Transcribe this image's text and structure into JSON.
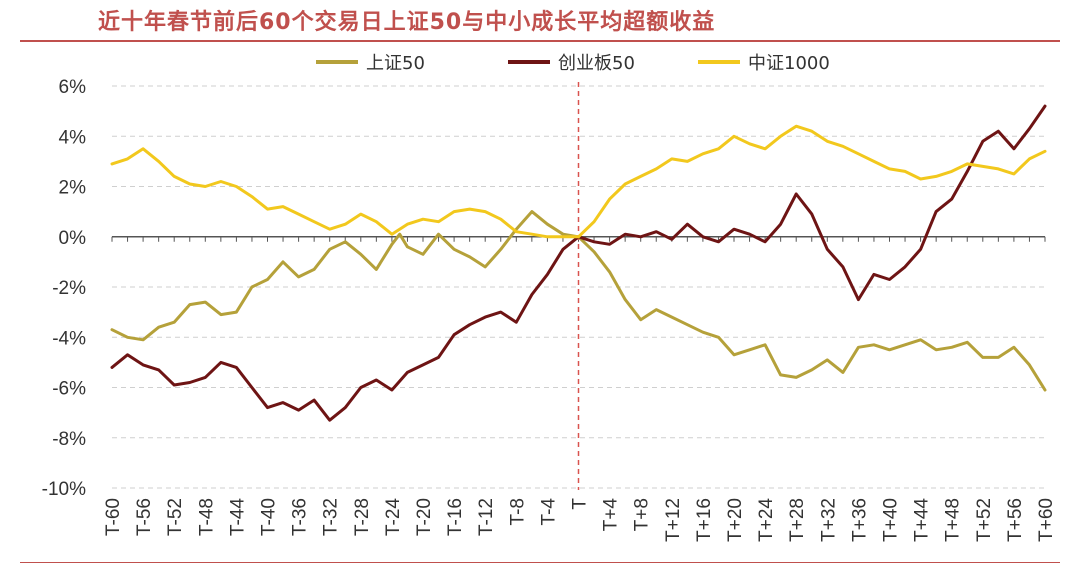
{
  "chart_data": {
    "type": "line",
    "title": "近十年春节前后60个交易日上证50与中小成长平均超额收益",
    "xlabel": "",
    "ylabel": "",
    "xlim": [
      -60,
      60
    ],
    "ylim": [
      -10,
      6
    ],
    "y_ticks": [
      "6%",
      "4%",
      "2%",
      "0%",
      "-2%",
      "-4%",
      "-6%",
      "-8%",
      "-10%"
    ],
    "x_ticks": [
      "T-60",
      "T-56",
      "T-52",
      "T-48",
      "T-44",
      "T-40",
      "T-36",
      "T-32",
      "T-28",
      "T-24",
      "T-20",
      "T-16",
      "T-12",
      "T-8",
      "T-4",
      "T",
      "T+4",
      "T+8",
      "T+12",
      "T+16",
      "T+20",
      "T+24",
      "T+28",
      "T+32",
      "T+36",
      "T+40",
      "T+44",
      "T+48",
      "T+52",
      "T+56",
      "T+60"
    ],
    "grid": "horizontal-dashed",
    "legend_position": "top",
    "reference_line": {
      "x": 0
    },
    "series": [
      {
        "name": "上证50",
        "color": "#b5a13a",
        "points": [
          [
            -60,
            -3.7
          ],
          [
            -58,
            -4.0
          ],
          [
            -56,
            -4.1
          ],
          [
            -54,
            -3.6
          ],
          [
            -52,
            -3.4
          ],
          [
            -50,
            -2.7
          ],
          [
            -48,
            -2.6
          ],
          [
            -46,
            -3.1
          ],
          [
            -44,
            -3.0
          ],
          [
            -42,
            -2.0
          ],
          [
            -40,
            -1.7
          ],
          [
            -38,
            -1.0
          ],
          [
            -36,
            -1.6
          ],
          [
            -34,
            -1.3
          ],
          [
            -32,
            -0.5
          ],
          [
            -30,
            -0.2
          ],
          [
            -28,
            -0.7
          ],
          [
            -26,
            -1.3
          ],
          [
            -24,
            -0.3
          ],
          [
            -23,
            0.1
          ],
          [
            -22,
            -0.4
          ],
          [
            -20,
            -0.7
          ],
          [
            -18,
            0.1
          ],
          [
            -16,
            -0.5
          ],
          [
            -14,
            -0.8
          ],
          [
            -12,
            -1.2
          ],
          [
            -10,
            -0.5
          ],
          [
            -8,
            0.3
          ],
          [
            -6,
            1.0
          ],
          [
            -4,
            0.5
          ],
          [
            -2,
            0.1
          ],
          [
            0,
            0.0
          ],
          [
            2,
            -0.6
          ],
          [
            4,
            -1.4
          ],
          [
            6,
            -2.5
          ],
          [
            8,
            -3.3
          ],
          [
            10,
            -2.9
          ],
          [
            12,
            -3.2
          ],
          [
            14,
            -3.5
          ],
          [
            16,
            -3.8
          ],
          [
            18,
            -4.0
          ],
          [
            20,
            -4.7
          ],
          [
            22,
            -4.5
          ],
          [
            24,
            -4.3
          ],
          [
            26,
            -5.5
          ],
          [
            28,
            -5.6
          ],
          [
            30,
            -5.3
          ],
          [
            32,
            -4.9
          ],
          [
            34,
            -5.4
          ],
          [
            36,
            -4.4
          ],
          [
            38,
            -4.3
          ],
          [
            40,
            -4.5
          ],
          [
            42,
            -4.3
          ],
          [
            44,
            -4.1
          ],
          [
            46,
            -4.5
          ],
          [
            48,
            -4.4
          ],
          [
            50,
            -4.2
          ],
          [
            52,
            -4.8
          ],
          [
            54,
            -4.8
          ],
          [
            56,
            -4.4
          ],
          [
            58,
            -5.1
          ],
          [
            60,
            -6.1
          ]
        ]
      },
      {
        "name": "创业板50",
        "color": "#6e1414",
        "points": [
          [
            -60,
            -5.2
          ],
          [
            -58,
            -4.7
          ],
          [
            -56,
            -5.1
          ],
          [
            -54,
            -5.3
          ],
          [
            -52,
            -5.9
          ],
          [
            -50,
            -5.8
          ],
          [
            -48,
            -5.6
          ],
          [
            -46,
            -5.0
          ],
          [
            -44,
            -5.2
          ],
          [
            -42,
            -6.0
          ],
          [
            -40,
            -6.8
          ],
          [
            -38,
            -6.6
          ],
          [
            -36,
            -6.9
          ],
          [
            -34,
            -6.5
          ],
          [
            -32,
            -7.3
          ],
          [
            -30,
            -6.8
          ],
          [
            -28,
            -6.0
          ],
          [
            -26,
            -5.7
          ],
          [
            -24,
            -6.1
          ],
          [
            -22,
            -5.4
          ],
          [
            -20,
            -5.1
          ],
          [
            -18,
            -4.8
          ],
          [
            -16,
            -3.9
          ],
          [
            -14,
            -3.5
          ],
          [
            -12,
            -3.2
          ],
          [
            -10,
            -3.0
          ],
          [
            -8,
            -3.4
          ],
          [
            -6,
            -2.3
          ],
          [
            -4,
            -1.5
          ],
          [
            -2,
            -0.5
          ],
          [
            0,
            0.0
          ],
          [
            2,
            -0.2
          ],
          [
            4,
            -0.3
          ],
          [
            6,
            0.1
          ],
          [
            8,
            0.0
          ],
          [
            10,
            0.2
          ],
          [
            12,
            -0.1
          ],
          [
            14,
            0.5
          ],
          [
            16,
            0.0
          ],
          [
            18,
            -0.2
          ],
          [
            20,
            0.3
          ],
          [
            22,
            0.1
          ],
          [
            24,
            -0.2
          ],
          [
            26,
            0.5
          ],
          [
            28,
            1.7
          ],
          [
            30,
            0.9
          ],
          [
            32,
            -0.5
          ],
          [
            34,
            -1.2
          ],
          [
            36,
            -2.5
          ],
          [
            38,
            -1.5
          ],
          [
            40,
            -1.7
          ],
          [
            42,
            -1.2
          ],
          [
            44,
            -0.5
          ],
          [
            46,
            1.0
          ],
          [
            48,
            1.5
          ],
          [
            50,
            2.6
          ],
          [
            52,
            3.8
          ],
          [
            54,
            4.2
          ],
          [
            56,
            3.5
          ],
          [
            58,
            4.3
          ],
          [
            60,
            5.2
          ]
        ]
      },
      {
        "name": "中证1000",
        "color": "#f2c81d",
        "points": [
          [
            -60,
            2.9
          ],
          [
            -58,
            3.1
          ],
          [
            -56,
            3.5
          ],
          [
            -54,
            3.0
          ],
          [
            -52,
            2.4
          ],
          [
            -50,
            2.1
          ],
          [
            -48,
            2.0
          ],
          [
            -46,
            2.2
          ],
          [
            -44,
            2.0
          ],
          [
            -42,
            1.6
          ],
          [
            -40,
            1.1
          ],
          [
            -38,
            1.2
          ],
          [
            -36,
            0.9
          ],
          [
            -34,
            0.6
          ],
          [
            -32,
            0.3
          ],
          [
            -30,
            0.5
          ],
          [
            -28,
            0.9
          ],
          [
            -26,
            0.6
          ],
          [
            -24,
            0.1
          ],
          [
            -22,
            0.5
          ],
          [
            -20,
            0.7
          ],
          [
            -18,
            0.6
          ],
          [
            -16,
            1.0
          ],
          [
            -14,
            1.1
          ],
          [
            -12,
            1.0
          ],
          [
            -10,
            0.7
          ],
          [
            -8,
            0.2
          ],
          [
            -6,
            0.1
          ],
          [
            -4,
            0.0
          ],
          [
            -2,
            0.0
          ],
          [
            0,
            0.0
          ],
          [
            2,
            0.6
          ],
          [
            4,
            1.5
          ],
          [
            6,
            2.1
          ],
          [
            8,
            2.4
          ],
          [
            10,
            2.7
          ],
          [
            12,
            3.1
          ],
          [
            14,
            3.0
          ],
          [
            16,
            3.3
          ],
          [
            18,
            3.5
          ],
          [
            20,
            4.0
          ],
          [
            22,
            3.7
          ],
          [
            24,
            3.5
          ],
          [
            26,
            4.0
          ],
          [
            28,
            4.4
          ],
          [
            30,
            4.2
          ],
          [
            32,
            3.8
          ],
          [
            34,
            3.6
          ],
          [
            36,
            3.3
          ],
          [
            38,
            3.0
          ],
          [
            40,
            2.7
          ],
          [
            42,
            2.6
          ],
          [
            44,
            2.3
          ],
          [
            46,
            2.4
          ],
          [
            48,
            2.6
          ],
          [
            50,
            2.9
          ],
          [
            52,
            2.8
          ],
          [
            54,
            2.7
          ],
          [
            56,
            2.5
          ],
          [
            58,
            3.1
          ],
          [
            60,
            3.4
          ]
        ]
      }
    ]
  }
}
